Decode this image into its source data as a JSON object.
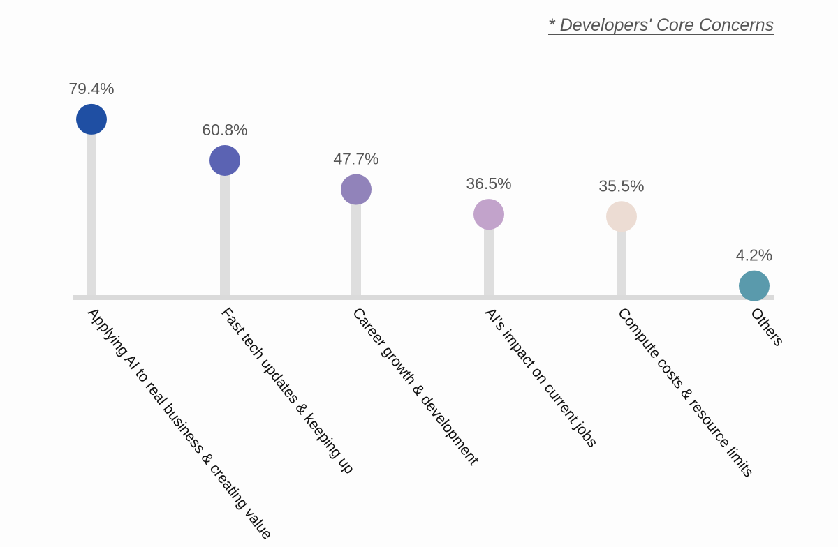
{
  "title": "* Developers' Core Concerns",
  "chart_data": {
    "type": "lollipop",
    "title": "* Developers' Core Concerns",
    "xlabel": "",
    "ylabel": "",
    "ylim": [
      0,
      100
    ],
    "grid": false,
    "categories": [
      "Applying AI to real business & creating value",
      "Fast tech updates & keeping up",
      "Career growth & development",
      "AI's impact on current jobs",
      "Compute costs & resource limits",
      "Others"
    ],
    "values": [
      79.4,
      60.8,
      47.7,
      36.5,
      35.5,
      4.2
    ],
    "value_labels": [
      "79.4%",
      "60.8%",
      "47.7%",
      "36.5%",
      "35.5%",
      "4.2%"
    ],
    "colors": [
      "#1f4fa3",
      "#5b63b3",
      "#9183ba",
      "#c2a3cb",
      "#ecdcd3",
      "#5a9aac"
    ],
    "stem_color": "#dedede",
    "baseline_color": "#dadada"
  }
}
